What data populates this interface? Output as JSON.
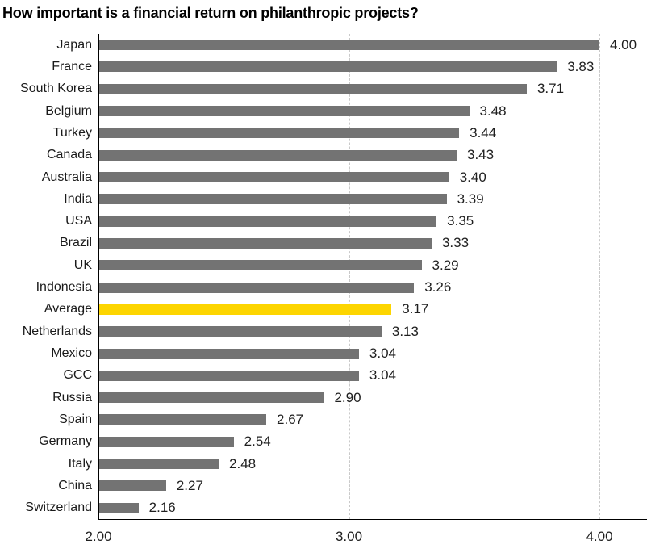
{
  "title": "How important is a financial return on philanthropic projects?",
  "colors": {
    "bar": "#737373",
    "highlight": "#FDD500",
    "axis": "#000000",
    "gridline": "#c9c9c9",
    "text": "#1a1a1a"
  },
  "chart_data": {
    "type": "bar",
    "orientation": "horizontal",
    "title": "How important is a financial return on philanthropic projects?",
    "xlabel": "",
    "ylabel": "",
    "xlim": [
      2.0,
      4.0
    ],
    "x_ticks": [
      {
        "value": 2.0,
        "label": "2.00"
      },
      {
        "value": 3.0,
        "label": "3.00"
      },
      {
        "value": 4.0,
        "label": "4.00"
      }
    ],
    "gridlines_at": [
      3.0,
      4.0
    ],
    "grid": "dashed-vertical",
    "legend": "none",
    "highlight_category": "Average",
    "categories": [
      "Japan",
      "France",
      "South Korea",
      "Belgium",
      "Turkey",
      "Canada",
      "Australia",
      "India",
      "USA",
      "Brazil",
      "UK",
      "Indonesia",
      "Average",
      "Netherlands",
      "Mexico",
      "GCC",
      "Russia",
      "Spain",
      "Germany",
      "Italy",
      "China",
      "Switzerland"
    ],
    "values": [
      4.0,
      3.83,
      3.71,
      3.48,
      3.44,
      3.43,
      3.4,
      3.39,
      3.35,
      3.33,
      3.29,
      3.26,
      3.17,
      3.13,
      3.04,
      3.04,
      2.9,
      2.67,
      2.54,
      2.48,
      2.27,
      2.16
    ],
    "value_labels": [
      "4.00",
      "3.83",
      "3.71",
      "3.48",
      "3.44",
      "3.43",
      "3.40",
      "3.39",
      "3.35",
      "3.33",
      "3.29",
      "3.26",
      "3.17",
      "3.13",
      "3.04",
      "3.04",
      "2.90",
      "2.67",
      "2.54",
      "2.48",
      "2.27",
      "2.16"
    ]
  }
}
